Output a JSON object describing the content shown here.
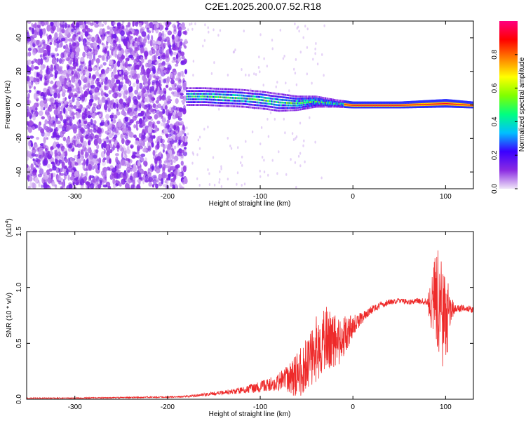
{
  "title": "C2E1.2025.200.07.52.R18",
  "chart_data": [
    {
      "type": "heatmap",
      "xlabel": "Height of straight line (km)",
      "ylabel": "Frequency (Hz)",
      "xlim": [
        -352,
        130
      ],
      "ylim": [
        -50,
        50
      ],
      "xticks": [
        -300,
        -200,
        -100,
        0,
        100
      ],
      "yticks": [
        -40,
        -20,
        0,
        20,
        40
      ],
      "xtick_labels": [
        "-300",
        "-200",
        "-100",
        "0",
        "100"
      ],
      "ytick_labels": [
        "-40",
        "-20",
        "0",
        "20",
        "40"
      ],
      "colorbar": {
        "label": "Normalized spectral amplitude",
        "range": [
          0,
          1
        ],
        "ticks": [
          0.0,
          0.2,
          0.4,
          0.6,
          0.8
        ],
        "tick_labels": [
          "0.0",
          "0.2",
          "0.4",
          "0.6",
          "0.8"
        ],
        "colors": [
          "#f0e6f8",
          "#8a2be2",
          "#3a00ff",
          "#00bfff",
          "#00ff80",
          "#80ff00",
          "#ffff00",
          "#ff8000",
          "#ff0000",
          "#ff0080"
        ]
      },
      "noise_region_x": [
        -352,
        -180
      ],
      "signal_track": [
        {
          "x": -180,
          "freq": 5,
          "width": 5
        },
        {
          "x": -160,
          "freq": 5,
          "width": 5
        },
        {
          "x": -140,
          "freq": 4.5,
          "width": 5
        },
        {
          "x": -120,
          "freq": 4,
          "width": 5
        },
        {
          "x": -100,
          "freq": 3,
          "width": 5
        },
        {
          "x": -80,
          "freq": 1.5,
          "width": 5
        },
        {
          "x": -60,
          "freq": 1,
          "width": 4
        },
        {
          "x": -40,
          "freq": 2,
          "width": 3
        },
        {
          "x": -20,
          "freq": 1,
          "width": 2
        },
        {
          "x": 0,
          "freq": 0,
          "width": 1.5
        },
        {
          "x": 50,
          "freq": 0,
          "width": 1.5
        },
        {
          "x": 100,
          "freq": 1,
          "width": 2
        },
        {
          "x": 130,
          "freq": 0,
          "width": 1.5
        }
      ]
    },
    {
      "type": "line",
      "xlabel": "Height of straight line (km)",
      "ylabel": "SNR (10 * v/v)",
      "y_multiplier": "(x10",
      "y_multiplier_exp": "4",
      "y_multiplier_close": ")",
      "xlim": [
        -352,
        130
      ],
      "ylim": [
        0,
        1.5
      ],
      "xticks": [
        -300,
        -200,
        -100,
        0,
        100
      ],
      "yticks": [
        0.0,
        0.5,
        1.0,
        1.5
      ],
      "xtick_labels": [
        "-300",
        "-200",
        "-100",
        "0",
        "100"
      ],
      "ytick_labels": [
        "0.0",
        "0.5",
        "1.0",
        "1.5"
      ],
      "color": "#ee2a2a",
      "series": [
        {
          "x": [
            -352,
            -300,
            -250,
            -200,
            -180,
            -160,
            -140,
            -120,
            -100,
            -80,
            -60,
            -50,
            -40,
            -30,
            -20,
            -10,
            0,
            10,
            20,
            30,
            40,
            50,
            60,
            70,
            80,
            85,
            90,
            95,
            100,
            105,
            110,
            120,
            130
          ],
          "values": [
            0.01,
            0.01,
            0.015,
            0.02,
            0.025,
            0.04,
            0.06,
            0.08,
            0.11,
            0.15,
            0.22,
            0.3,
            0.45,
            0.55,
            0.5,
            0.55,
            0.65,
            0.73,
            0.8,
            0.84,
            0.87,
            0.88,
            0.87,
            0.88,
            0.87,
            0.85,
            0.9,
            0.8,
            0.7,
            0.8,
            0.8,
            0.82,
            0.8
          ],
          "amplitude": [
            0.004,
            0.004,
            0.005,
            0.006,
            0.008,
            0.015,
            0.02,
            0.03,
            0.05,
            0.08,
            0.2,
            0.25,
            0.3,
            0.3,
            0.25,
            0.2,
            0.1,
            0.05,
            0.04,
            0.03,
            0.025,
            0.025,
            0.025,
            0.025,
            0.03,
            0.25,
            0.45,
            0.5,
            0.45,
            0.15,
            0.04,
            0.03,
            0.03
          ]
        }
      ]
    }
  ]
}
